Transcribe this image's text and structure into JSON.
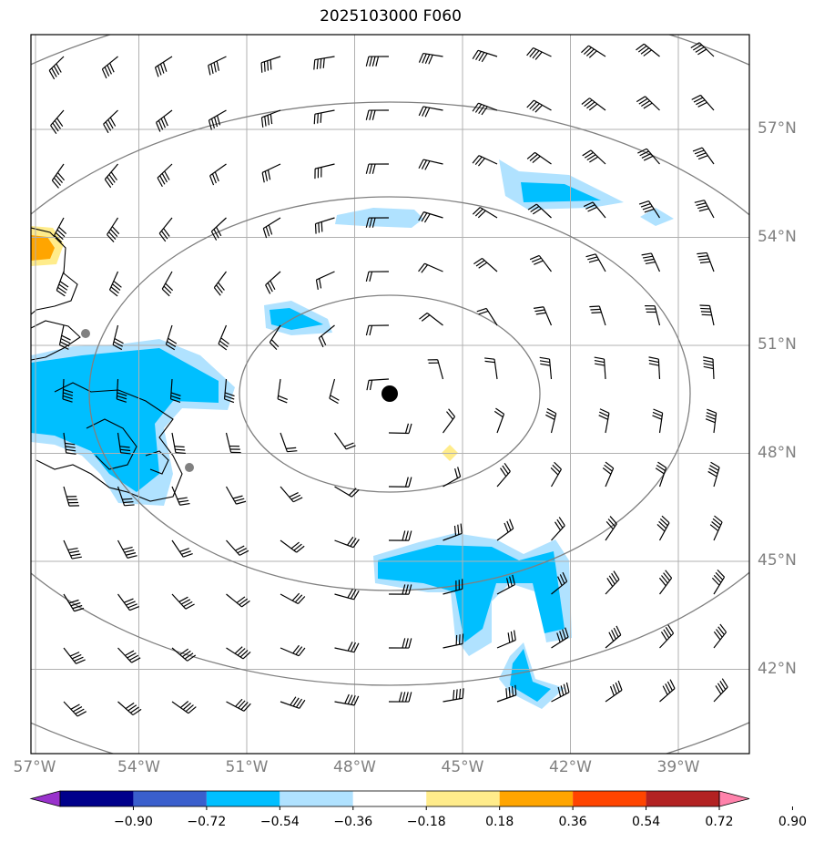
{
  "title": "2025103000 F060",
  "lat_labels": [
    {
      "lat": 57,
      "label": "57°N"
    },
    {
      "lat": 54,
      "label": "54°N"
    },
    {
      "lat": 51,
      "label": "51°N"
    },
    {
      "lat": 48,
      "label": "48°N"
    },
    {
      "lat": 45,
      "label": "45°N"
    },
    {
      "lat": 42,
      "label": "42°N"
    }
  ],
  "lon_labels": [
    {
      "lon": -57,
      "label": "57°W"
    },
    {
      "lon": -54,
      "label": "54°W"
    },
    {
      "lon": -51,
      "label": "51°W"
    },
    {
      "lon": -48,
      "label": "48°W"
    },
    {
      "lon": -45,
      "label": "45°W"
    },
    {
      "lon": -42,
      "label": "42°W"
    },
    {
      "lon": -39,
      "label": "39°W"
    }
  ],
  "colorbar": {
    "colors": [
      "#9932cc",
      "#00008b",
      "#3a5fcd",
      "#00bfff",
      "#b0e2ff",
      "#ffffff",
      "#ffec8b",
      "#ffa500",
      "#ff4500",
      "#b22222",
      "#ff82ab"
    ],
    "ticks": [
      "−0.90",
      "−0.72",
      "−0.54",
      "−0.36",
      "−0.18",
      "0.18",
      "0.36",
      "0.54",
      "0.72",
      "0.90"
    ]
  },
  "storm_center": {
    "lat": 49.9,
    "lon": -46.2
  },
  "range_rings_km": [
    300,
    600,
    900
  ]
}
